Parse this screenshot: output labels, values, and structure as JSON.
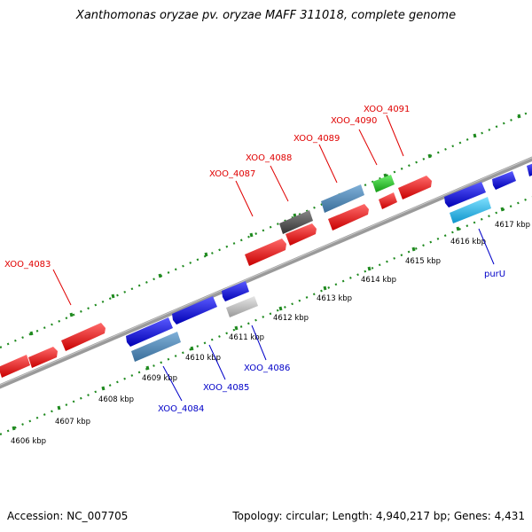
{
  "title": "Xanthomonas oryzae pv. oryzae MAFF 311018, complete genome",
  "footer": {
    "accession": "Accession: NC_007705",
    "summary": "Topology: circular; Length: 4,940,217 bp; Genes: 4,431"
  },
  "colors": {
    "forward_label": "#e00000",
    "reverse_label": "#0000c8",
    "forward_ruler": "#1f8a1f",
    "backbone": "#8c8c8c"
  },
  "tick_labels": [
    "4606 kbp",
    "4607 kbp",
    "4608 kbp",
    "4609 kbp",
    "4610 kbp",
    "4611 kbp",
    "4612 kbp",
    "4613 kbp",
    "4614 kbp",
    "4615 kbp",
    "4616 kbp",
    "4617 kbp"
  ],
  "forward_labels": [
    "XOO_4083",
    "XOO_4087",
    "XOO_4088",
    "XOO_4089",
    "XOO_4090",
    "XOO_4091"
  ],
  "reverse_labels": [
    "XOO_4084",
    "XOO_4085",
    "XOO_4086",
    "purU"
  ],
  "gene_colors": {
    "red": "#ff0000",
    "blue": "#1414e6",
    "steelblue": "#4682b4",
    "darkgray": "#555555",
    "green": "#22c522",
    "silver": "#bfbfbf",
    "cyan": "#1fb6f0"
  }
}
